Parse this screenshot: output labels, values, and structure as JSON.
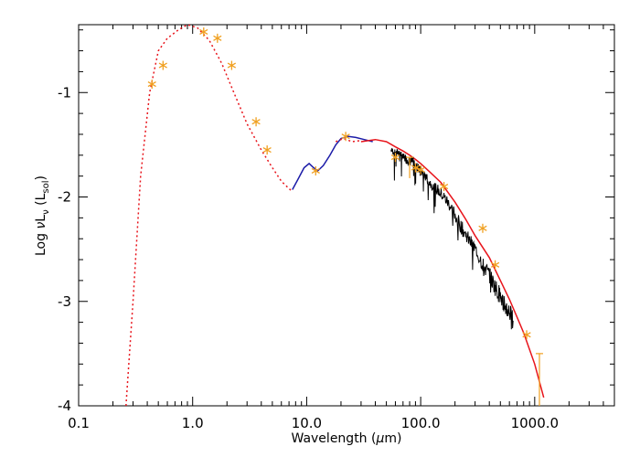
{
  "chart_data": {
    "type": "line",
    "xlabel": "Wavelength (μm)",
    "ylabel": "Log νLν (Lsol)",
    "xscale": "log",
    "xlim": [
      0.1,
      5000
    ],
    "ylim": [
      -4,
      -0.35
    ],
    "x_tick_labels": [
      "0.1",
      "1.0",
      "10.0",
      "100.0",
      "1000.0"
    ],
    "x_tick_values": [
      0.1,
      1,
      10,
      100,
      1000
    ],
    "y_tick_labels": [
      "-1",
      "-2",
      "-3",
      "-4"
    ],
    "y_tick_values": [
      -1,
      -2,
      -3,
      -4
    ],
    "grid": false,
    "legend": "none",
    "colors": {
      "model_stellar": "#e8141b",
      "model_dust": "#e8141b",
      "ir_spectrum": "#1c1ca8",
      "far_ir_spectrum": "#000000",
      "photometry": "#f0a020"
    },
    "series": [
      {
        "style": "dotted",
        "color": "#e8141b",
        "x": [
          0.26,
          0.3,
          0.35,
          0.42,
          0.5,
          0.6,
          0.75,
          0.9,
          1.1,
          1.4,
          1.8,
          2.3,
          3.0,
          4.0,
          5.0,
          6.0,
          7.5
        ],
        "y": [
          -4.0,
          -3.0,
          -1.8,
          -1.0,
          -0.6,
          -0.48,
          -0.4,
          -0.35,
          -0.38,
          -0.5,
          -0.72,
          -1.0,
          -1.3,
          -1.55,
          -1.72,
          -1.85,
          -1.95
        ]
      },
      {
        "style": "solid",
        "color": "#1c1ca8",
        "x": [
          7.5,
          8.5,
          9.5,
          10.5,
          11.5,
          12.5,
          14.0,
          16.0,
          18.0,
          20.0,
          23.0,
          27.0,
          32.0,
          38.0
        ],
        "y": [
          -1.93,
          -1.82,
          -1.72,
          -1.68,
          -1.72,
          -1.75,
          -1.7,
          -1.6,
          -1.5,
          -1.44,
          -1.42,
          -1.43,
          -1.45,
          -1.47
        ]
      },
      {
        "style": "dotted",
        "color": "#e8141b",
        "x": [
          18.0,
          21.0,
          25.0,
          30.0
        ],
        "y": [
          -1.47,
          -1.44,
          -1.47,
          -1.46
        ]
      },
      {
        "style": "solid",
        "color": "#e8141b",
        "x": [
          30.0,
          40.0,
          50.0,
          60.0,
          70.0,
          80.0,
          90.0,
          100.0,
          120.0,
          150.0,
          200.0,
          250.0,
          300.0,
          400.0,
          500.0,
          600.0,
          700.0,
          800.0,
          1000.0,
          1200.0
        ],
        "y": [
          -1.47,
          -1.45,
          -1.47,
          -1.52,
          -1.56,
          -1.6,
          -1.64,
          -1.68,
          -1.76,
          -1.86,
          -2.05,
          -2.22,
          -2.37,
          -2.58,
          -2.8,
          -2.98,
          -3.15,
          -3.3,
          -3.6,
          -3.92
        ]
      },
      {
        "style": "noisy",
        "color": "#000000",
        "x": [
          55,
          60,
          65,
          70,
          75,
          80,
          85,
          90,
          95,
          100,
          110,
          120,
          140,
          160,
          180,
          200,
          230,
          260,
          300,
          350,
          400,
          450,
          500,
          550,
          600,
          650
        ],
        "y": [
          -1.55,
          -1.58,
          -1.57,
          -1.62,
          -1.64,
          -1.66,
          -1.66,
          -1.7,
          -1.72,
          -1.75,
          -1.8,
          -1.86,
          -1.93,
          -2.0,
          -2.08,
          -2.17,
          -2.3,
          -2.4,
          -2.5,
          -2.64,
          -2.75,
          -2.86,
          -2.95,
          -3.05,
          -3.1,
          -3.2
        ]
      }
    ],
    "photometry_points": {
      "marker": "asterisk",
      "color": "#f0a020",
      "x": [
        0.44,
        0.55,
        1.25,
        1.65,
        2.2,
        3.6,
        4.5,
        12.0,
        22.0,
        60.0,
        90.0,
        100.0,
        160.0,
        350.0,
        450.0,
        850.0
      ],
      "y": [
        -0.92,
        -0.74,
        -0.42,
        -0.48,
        -0.74,
        -1.28,
        -1.55,
        -1.75,
        -1.42,
        -1.62,
        -1.72,
        -1.74,
        -1.9,
        -2.3,
        -2.65,
        -3.32
      ]
    },
    "error_bars": {
      "color": "#f0a020",
      "points": [
        {
          "x": 80.0,
          "y": -1.72,
          "lo": -1.82,
          "hi": -1.62
        },
        {
          "x": 1100.0,
          "y": -3.75,
          "lo": -4.0,
          "hi": -3.5
        }
      ]
    }
  }
}
